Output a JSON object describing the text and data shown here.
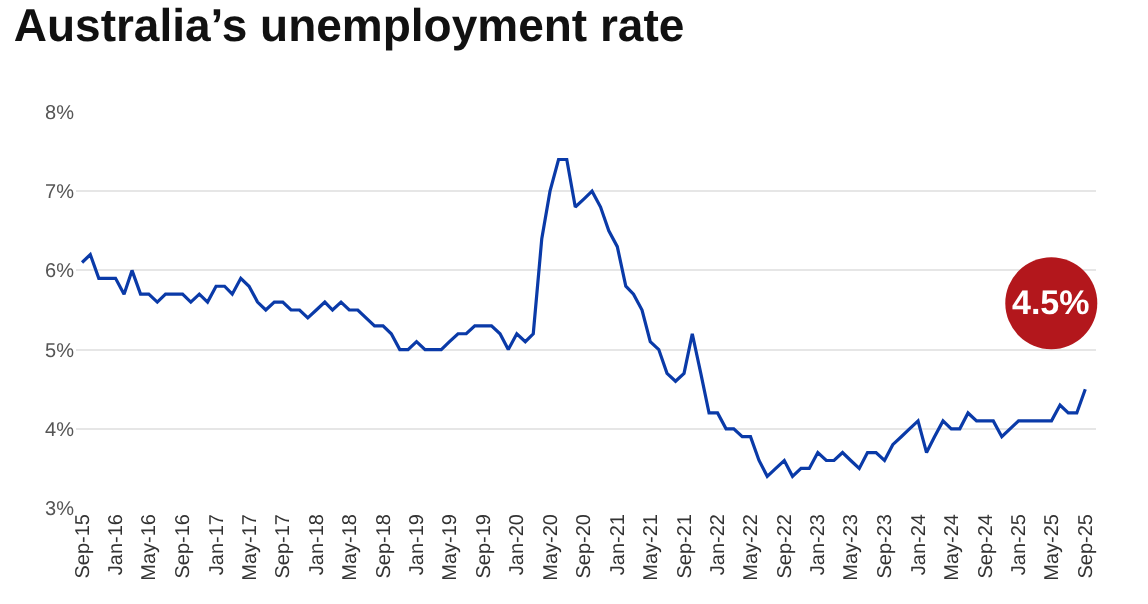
{
  "chart_data": {
    "type": "line",
    "title": "Australia’s unemployment rate",
    "x": [
      "2015-09",
      "2015-10",
      "2015-11",
      "2015-12",
      "2016-01",
      "2016-02",
      "2016-03",
      "2016-04",
      "2016-05",
      "2016-06",
      "2016-07",
      "2016-08",
      "2016-09",
      "2016-10",
      "2016-11",
      "2016-12",
      "2017-01",
      "2017-02",
      "2017-03",
      "2017-04",
      "2017-05",
      "2017-06",
      "2017-07",
      "2017-08",
      "2017-09",
      "2017-10",
      "2017-11",
      "2017-12",
      "2018-01",
      "2018-02",
      "2018-03",
      "2018-04",
      "2018-05",
      "2018-06",
      "2018-07",
      "2018-08",
      "2018-09",
      "2018-10",
      "2018-11",
      "2018-12",
      "2019-01",
      "2019-02",
      "2019-03",
      "2019-04",
      "2019-05",
      "2019-06",
      "2019-07",
      "2019-08",
      "2019-09",
      "2019-10",
      "2019-11",
      "2019-12",
      "2020-01",
      "2020-02",
      "2020-03",
      "2020-04",
      "2020-05",
      "2020-06",
      "2020-07",
      "2020-08",
      "2020-09",
      "2020-10",
      "2020-11",
      "2020-12",
      "2021-01",
      "2021-02",
      "2021-03",
      "2021-04",
      "2021-05",
      "2021-06",
      "2021-07",
      "2021-08",
      "2021-09",
      "2021-10",
      "2021-11",
      "2021-12",
      "2022-01",
      "2022-02",
      "2022-03",
      "2022-04",
      "2022-05",
      "2022-06",
      "2022-07",
      "2022-08",
      "2022-09",
      "2022-10",
      "2022-11",
      "2022-12",
      "2023-01",
      "2023-02",
      "2023-03",
      "2023-04",
      "2023-05",
      "2023-06",
      "2023-07",
      "2023-08",
      "2023-09",
      "2023-10",
      "2023-11",
      "2023-12",
      "2024-01",
      "2024-02",
      "2024-03",
      "2024-04",
      "2024-05",
      "2024-06",
      "2024-07",
      "2024-08",
      "2024-09",
      "2024-10",
      "2024-11",
      "2024-12",
      "2025-01",
      "2025-02",
      "2025-03",
      "2025-04",
      "2025-05",
      "2025-06",
      "2025-07",
      "2025-08",
      "2025-09"
    ],
    "series": [
      {
        "color": "#0a3aa8",
        "values": [
          6.1,
          6.2,
          5.9,
          5.9,
          5.9,
          5.7,
          6.0,
          5.7,
          5.7,
          5.6,
          5.7,
          5.7,
          5.7,
          5.6,
          5.7,
          5.6,
          5.8,
          5.8,
          5.7,
          5.9,
          5.8,
          5.6,
          5.5,
          5.6,
          5.6,
          5.5,
          5.5,
          5.4,
          5.5,
          5.6,
          5.5,
          5.6,
          5.5,
          5.5,
          5.4,
          5.3,
          5.3,
          5.2,
          5.0,
          5.0,
          5.1,
          5.0,
          5.0,
          5.0,
          5.1,
          5.2,
          5.2,
          5.3,
          5.3,
          5.3,
          5.2,
          5.0,
          5.2,
          5.1,
          5.2,
          6.4,
          7.0,
          7.4,
          7.4,
          6.8,
          6.9,
          7.0,
          6.8,
          6.5,
          6.3,
          5.8,
          5.7,
          5.5,
          5.1,
          5.0,
          4.7,
          4.6,
          4.7,
          5.2,
          4.7,
          4.2,
          4.2,
          4.0,
          4.0,
          3.9,
          3.9,
          3.6,
          3.4,
          3.5,
          3.6,
          3.4,
          3.5,
          3.5,
          3.7,
          3.6,
          3.6,
          3.7,
          3.6,
          3.5,
          3.7,
          3.7,
          3.6,
          3.8,
          3.9,
          4.0,
          4.1,
          3.7,
          3.9,
          4.1,
          4.0,
          4.0,
          4.2,
          4.1,
          4.1,
          4.1,
          3.9,
          4.0,
          4.1,
          4.1,
          4.1,
          4.1,
          4.1,
          4.3,
          4.2,
          4.2,
          4.5
        ]
      }
    ],
    "xlim": [
      "2015-08-10",
      "2025-10-10"
    ],
    "xticks": [
      {
        "value": "2015-09",
        "label": "Sep-15"
      },
      {
        "value": "2016-01",
        "label": "Jan-16"
      },
      {
        "value": "2016-05",
        "label": "May-16"
      },
      {
        "value": "2016-09",
        "label": "Sep-16"
      },
      {
        "value": "2017-01",
        "label": "Jan-17"
      },
      {
        "value": "2017-05",
        "label": "May-17"
      },
      {
        "value": "2017-09",
        "label": "Sep-17"
      },
      {
        "value": "2018-01",
        "label": "Jan-18"
      },
      {
        "value": "2018-05",
        "label": "May-18"
      },
      {
        "value": "2018-09",
        "label": "Sep-18"
      },
      {
        "value": "2019-01",
        "label": "Jan-19"
      },
      {
        "value": "2019-05",
        "label": "May-19"
      },
      {
        "value": "2019-09",
        "label": "Sep-19"
      },
      {
        "value": "2020-01",
        "label": "Jan-20"
      },
      {
        "value": "2020-05",
        "label": "May-20"
      },
      {
        "value": "2020-09",
        "label": "Sep-20"
      },
      {
        "value": "2021-01",
        "label": "Jan-21"
      },
      {
        "value": "2021-05",
        "label": "May-21"
      },
      {
        "value": "2021-09",
        "label": "Sep-21"
      },
      {
        "value": "2022-01",
        "label": "Jan-22"
      },
      {
        "value": "2022-05",
        "label": "May-22"
      },
      {
        "value": "2022-09",
        "label": "Sep-22"
      },
      {
        "value": "2023-01",
        "label": "Jan-23"
      },
      {
        "value": "2023-05",
        "label": "May-23"
      },
      {
        "value": "2023-09",
        "label": "Sep-23"
      },
      {
        "value": "2024-01",
        "label": "Jan-24"
      },
      {
        "value": "2024-05",
        "label": "May-24"
      },
      {
        "value": "2024-09",
        "label": "Sep-24"
      },
      {
        "value": "2025-01",
        "label": "Jan-25"
      },
      {
        "value": "2025-05",
        "label": "May-25"
      },
      {
        "value": "2025-09",
        "label": "Sep-25"
      }
    ],
    "ylim": [
      3,
      8
    ],
    "yticks": [
      {
        "value": 3,
        "label": "3%"
      },
      {
        "value": 4,
        "label": "4%"
      },
      {
        "value": 5,
        "label": "5%"
      },
      {
        "value": 6,
        "label": "6%"
      },
      {
        "value": 7,
        "label": "7%"
      },
      {
        "value": 8,
        "label": "8%"
      }
    ],
    "grid": "y",
    "annotations": [
      {
        "text": "4.5%",
        "x": "2025-09",
        "y": 4.5
      }
    ]
  }
}
